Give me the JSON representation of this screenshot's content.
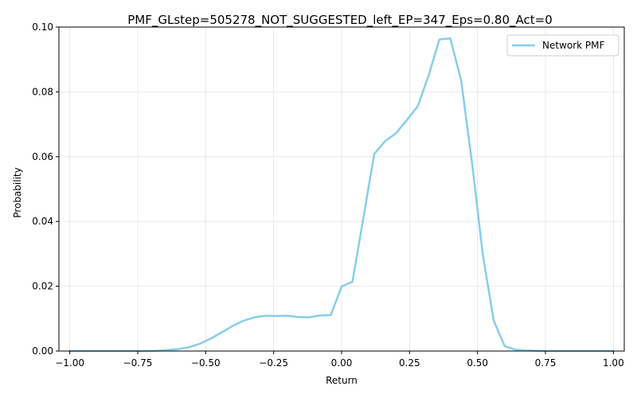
{
  "chart_data": {
    "type": "line",
    "title": "PMF_GLstep=505278_NOT_SUGGESTED_left_EP=347_Eps=0.80_Act=0",
    "xlabel": "Return",
    "ylabel": "Probability",
    "xlim": [
      -1.04,
      1.04
    ],
    "ylim": [
      0,
      0.1
    ],
    "x_ticks": [
      -1.0,
      -0.75,
      -0.5,
      -0.25,
      0.0,
      0.25,
      0.5,
      0.75,
      1.0
    ],
    "x_tick_labels": [
      "−1.00",
      "−0.75",
      "−0.50",
      "−0.25",
      "0.00",
      "0.25",
      "0.50",
      "0.75",
      "1.00"
    ],
    "y_ticks": [
      0.0,
      0.02,
      0.04,
      0.06,
      0.08,
      0.1
    ],
    "y_tick_labels": [
      "0.00",
      "0.02",
      "0.04",
      "0.06",
      "0.08",
      "0.10"
    ],
    "grid": true,
    "legend_position": "top-right",
    "series": [
      {
        "name": "Network PMF",
        "color": "#87ceeb",
        "x": [
          -1.0,
          -0.96,
          -0.92,
          -0.88,
          -0.84,
          -0.8,
          -0.76,
          -0.72,
          -0.68,
          -0.64,
          -0.6,
          -0.56,
          -0.52,
          -0.48,
          -0.44,
          -0.4,
          -0.36,
          -0.32,
          -0.28,
          -0.24,
          -0.2,
          -0.16,
          -0.12,
          -0.08,
          -0.04,
          0.0,
          0.04,
          0.08,
          0.12,
          0.16,
          0.2,
          0.24,
          0.28,
          0.32,
          0.36,
          0.4,
          0.44,
          0.48,
          0.52,
          0.56,
          0.6,
          0.64,
          0.68,
          0.72,
          0.76,
          0.8,
          0.84,
          0.88,
          0.92,
          0.96,
          1.0
        ],
        "values": [
          0.0,
          0.0,
          0.0,
          0.0,
          0.0,
          0.0,
          0.0,
          0.0,
          0.0001,
          0.0003,
          0.0006,
          0.0012,
          0.0023,
          0.0039,
          0.0058,
          0.0078,
          0.0094,
          0.0104,
          0.0109,
          0.0108,
          0.0109,
          0.0105,
          0.0104,
          0.011,
          0.0111,
          0.0199,
          0.0214,
          0.041,
          0.0608,
          0.0648,
          0.0672,
          0.0713,
          0.0755,
          0.085,
          0.0962,
          0.0965,
          0.0835,
          0.058,
          0.0295,
          0.0093,
          0.0015,
          0.0004,
          0.0002,
          0.0001,
          0.0,
          0.0,
          0.0,
          0.0,
          0.0,
          0.0,
          0.0
        ]
      }
    ]
  }
}
